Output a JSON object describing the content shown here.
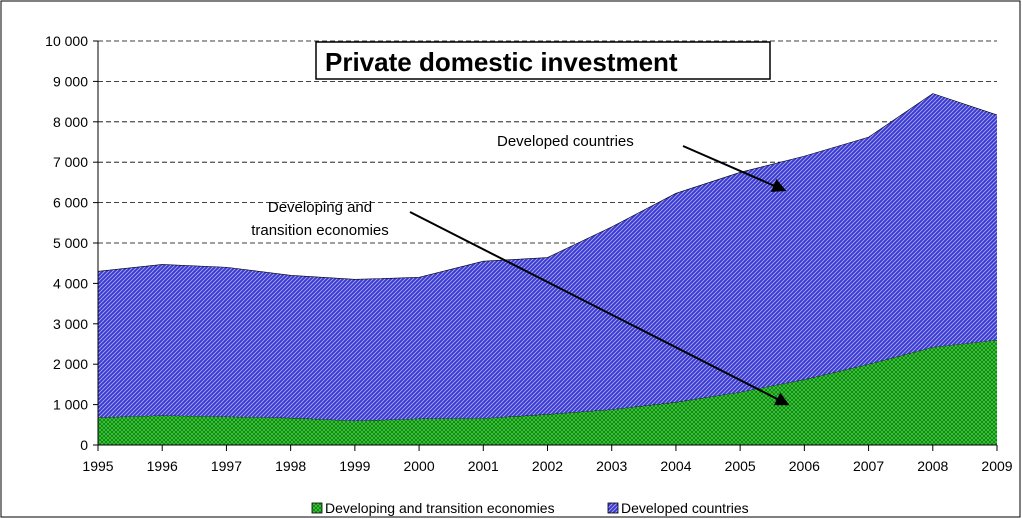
{
  "chart_data": {
    "type": "area",
    "stacked": true,
    "title": "Private domestic investment",
    "x": [
      1995,
      1996,
      1997,
      1998,
      1999,
      2000,
      2001,
      2002,
      2003,
      2004,
      2005,
      2006,
      2007,
      2008,
      2009
    ],
    "series": [
      {
        "name": "Developing and transition economies",
        "color": "#33cc33",
        "pattern": "crosshatch",
        "values": [
          680,
          730,
          700,
          670,
          600,
          650,
          660,
          760,
          880,
          1060,
          1310,
          1620,
          2000,
          2420,
          2600
        ]
      },
      {
        "name": "Developed countries",
        "color": "#3333cc",
        "pattern": "diagonal-stripes",
        "values": [
          3620,
          3740,
          3700,
          3530,
          3500,
          3500,
          3890,
          3880,
          4520,
          5170,
          5440,
          5530,
          5620,
          6280,
          5570
        ]
      }
    ],
    "ylim": [
      0,
      10000
    ],
    "yticks": [
      0,
      1000,
      2000,
      3000,
      4000,
      5000,
      6000,
      7000,
      8000,
      9000,
      10000
    ],
    "ytick_labels": [
      "0",
      "1 000",
      "2 000",
      "3 000",
      "4 000",
      "5 000",
      "6 000",
      "7 000",
      "8 000",
      "9 000",
      "10 000"
    ],
    "xtick_labels": [
      "1995",
      "1996",
      "1997",
      "1998",
      "1999",
      "2000",
      "2001",
      "2002",
      "2003",
      "2004",
      "2005",
      "2006",
      "2007",
      "2008",
      "2009"
    ],
    "grid": "horizontal-dashed",
    "legend_placement": "bottom",
    "annotations": [
      {
        "text": "Developed countries",
        "target_x": 2005.7,
        "target_y": 6300
      },
      {
        "text": "Developing and\ntransition economies",
        "target_x": 2005.75,
        "target_y": 1000
      }
    ]
  }
}
